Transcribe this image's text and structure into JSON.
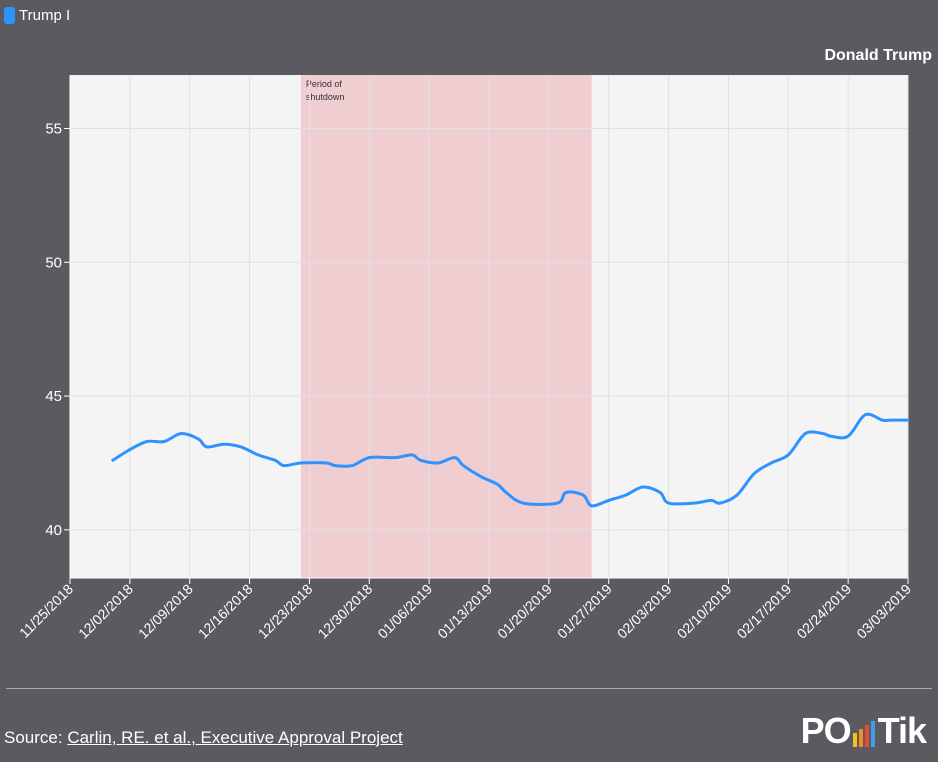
{
  "legend": {
    "label": "Trump I",
    "color": "#2f93ff"
  },
  "subject": "Donald Trump",
  "source": {
    "prefix": "Source:",
    "link": "Carlin, RE. et al., Executive Approval Project"
  },
  "logo": {
    "left": "PO",
    "right": "Tik"
  },
  "colors": {
    "background": "#5b5a60",
    "plot_bg": "#f4f4f4",
    "shutdown_band": "#f0cdd1",
    "line": "#2f93ff"
  },
  "chart_data": {
    "type": "line",
    "x_format": "date",
    "xlim": [
      "2018-11-25",
      "2019-03-03"
    ],
    "ylim": [
      38.2,
      57
    ],
    "yticks": [
      40,
      45,
      50,
      55
    ],
    "xticks": [
      "11/25/2018",
      "12/02/2018",
      "12/09/2018",
      "12/16/2018",
      "12/23/2018",
      "12/30/2018",
      "01/06/2019",
      "01/13/2019",
      "01/20/2019",
      "01/27/2019",
      "02/03/2019",
      "02/10/2019",
      "02/17/2019",
      "02/24/2019",
      "03/03/2019"
    ],
    "grid": true,
    "shaded_region": {
      "label": "Period of shutdown",
      "start": "2018-12-22",
      "end": "2019-01-25"
    },
    "series": [
      {
        "name": "Trump I",
        "color": "#2f93ff",
        "points": [
          [
            "2018-11-30",
            42.6
          ],
          [
            "2018-12-02",
            43.0
          ],
          [
            "2018-12-04",
            43.3
          ],
          [
            "2018-12-06",
            43.3
          ],
          [
            "2018-12-08",
            43.6
          ],
          [
            "2018-12-10",
            43.4
          ],
          [
            "2018-12-11",
            43.1
          ],
          [
            "2018-12-13",
            43.2
          ],
          [
            "2018-12-15",
            43.1
          ],
          [
            "2018-12-17",
            42.8
          ],
          [
            "2018-12-19",
            42.6
          ],
          [
            "2018-12-20",
            42.4
          ],
          [
            "2018-12-22",
            42.5
          ],
          [
            "2018-12-25",
            42.5
          ],
          [
            "2018-12-26",
            42.4
          ],
          [
            "2018-12-28",
            42.4
          ],
          [
            "2018-12-30",
            42.7
          ],
          [
            "2019-01-02",
            42.7
          ],
          [
            "2019-01-04",
            42.8
          ],
          [
            "2019-01-05",
            42.6
          ],
          [
            "2019-01-07",
            42.5
          ],
          [
            "2019-01-09",
            42.7
          ],
          [
            "2019-01-10",
            42.4
          ],
          [
            "2019-01-12",
            42.0
          ],
          [
            "2019-01-14",
            41.7
          ],
          [
            "2019-01-15",
            41.4
          ],
          [
            "2019-01-17",
            41.0
          ],
          [
            "2019-01-21",
            41.0
          ],
          [
            "2019-01-22",
            41.4
          ],
          [
            "2019-01-24",
            41.3
          ],
          [
            "2019-01-25",
            40.9
          ],
          [
            "2019-01-27",
            41.1
          ],
          [
            "2019-01-29",
            41.3
          ],
          [
            "2019-01-31",
            41.6
          ],
          [
            "2019-02-02",
            41.4
          ],
          [
            "2019-02-03",
            41.0
          ],
          [
            "2019-02-06",
            41.0
          ],
          [
            "2019-02-08",
            41.1
          ],
          [
            "2019-02-09",
            41.0
          ],
          [
            "2019-02-11",
            41.3
          ],
          [
            "2019-02-13",
            42.1
          ],
          [
            "2019-02-15",
            42.5
          ],
          [
            "2019-02-17",
            42.8
          ],
          [
            "2019-02-19",
            43.6
          ],
          [
            "2019-02-21",
            43.6
          ],
          [
            "2019-02-22",
            43.5
          ],
          [
            "2019-02-24",
            43.5
          ],
          [
            "2019-02-26",
            44.3
          ],
          [
            "2019-02-28",
            44.1
          ],
          [
            "2019-03-01",
            44.1
          ],
          [
            "2019-03-03",
            44.1
          ]
        ]
      }
    ]
  }
}
